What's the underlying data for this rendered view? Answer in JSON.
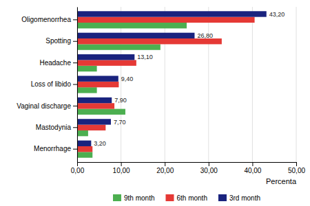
{
  "chart_data": {
    "type": "bar",
    "orientation": "horizontal",
    "categories": [
      "Oligomenorrhea",
      "Spotting",
      "Headache",
      "Loss of libido",
      "Vaginal discharge",
      "Mastodynia",
      "Menorrhage"
    ],
    "series": [
      {
        "name": "9th month",
        "color": "#4CAF50",
        "values": [
          25.0,
          19.0,
          4.5,
          4.5,
          11.0,
          2.5,
          3.5
        ]
      },
      {
        "name": "6th month",
        "color": "#E53935",
        "values": [
          40.5,
          33.0,
          13.5,
          9.5,
          8.5,
          6.5,
          3.5
        ]
      },
      {
        "name": "3rd month",
        "color": "#1A237E",
        "values": [
          43.2,
          26.8,
          13.1,
          9.4,
          7.9,
          7.7,
          3.2
        ],
        "data_labels": true,
        "value_labels": [
          "43,20",
          "26,80",
          "13,10",
          "9,40",
          "7,90",
          "7,70",
          "3,20"
        ]
      }
    ],
    "xlabel": "Percenta",
    "xlim": [
      0,
      50
    ],
    "xticks": [
      {
        "value": 0,
        "label": "0,00"
      },
      {
        "value": 10,
        "label": "10,00"
      },
      {
        "value": 20,
        "label": "20,00"
      },
      {
        "value": 30,
        "label": "30,00"
      },
      {
        "value": 40,
        "label": "40,00"
      },
      {
        "value": 50,
        "label": "50,00"
      }
    ],
    "grid": true
  }
}
